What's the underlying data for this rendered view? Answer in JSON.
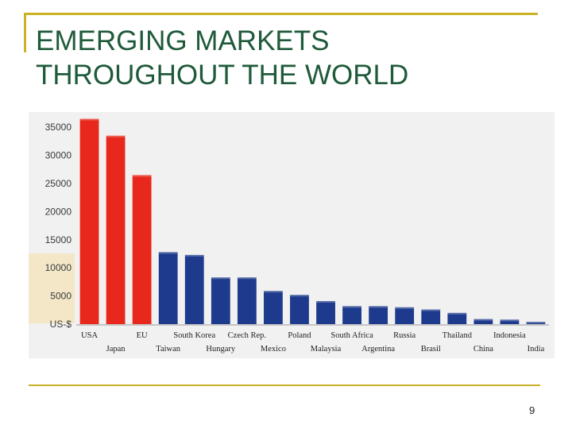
{
  "slide": {
    "title_lines": [
      "EMERGING MARKETS",
      "THROUGHOUT THE WORLD"
    ],
    "page_number": "9"
  },
  "colors": {
    "frame": "#c9b226",
    "title": "#1f5a3a",
    "red_bar": "#e8281c",
    "blue_bar": "#1d3a8c",
    "chart_bg": "#f1f1f1"
  },
  "chart_data": {
    "type": "bar",
    "title": "",
    "xlabel": "",
    "ylabel": "US-$",
    "ylim": [
      0,
      37000
    ],
    "yticks": [
      5000,
      10000,
      15000,
      20000,
      25000,
      30000,
      35000
    ],
    "categories": [
      "USA",
      "Japan",
      "EU",
      "Taiwan",
      "South Korea",
      "Hungary",
      "Czech Rep.",
      "Mexico",
      "Poland",
      "Malaysia",
      "South Africa",
      "Argentina",
      "Russia",
      "Brasil",
      "Thailand",
      "China",
      "Indonesia",
      "India"
    ],
    "values": [
      36500,
      33500,
      26500,
      12800,
      12300,
      8300,
      8300,
      5900,
      5200,
      4100,
      3200,
      3200,
      3000,
      2600,
      2000,
      900,
      800,
      400
    ],
    "series_colors": [
      "red",
      "red",
      "red",
      "blue",
      "blue",
      "blue",
      "blue",
      "blue",
      "blue",
      "blue",
      "blue",
      "blue",
      "blue",
      "blue",
      "blue",
      "blue",
      "blue",
      "blue"
    ],
    "label_rows": [
      "top",
      "bottom",
      "top",
      "bottom",
      "top",
      "bottom",
      "top",
      "bottom",
      "top",
      "bottom",
      "top",
      "bottom",
      "top",
      "bottom",
      "top",
      "bottom",
      "top",
      "bottom"
    ]
  }
}
